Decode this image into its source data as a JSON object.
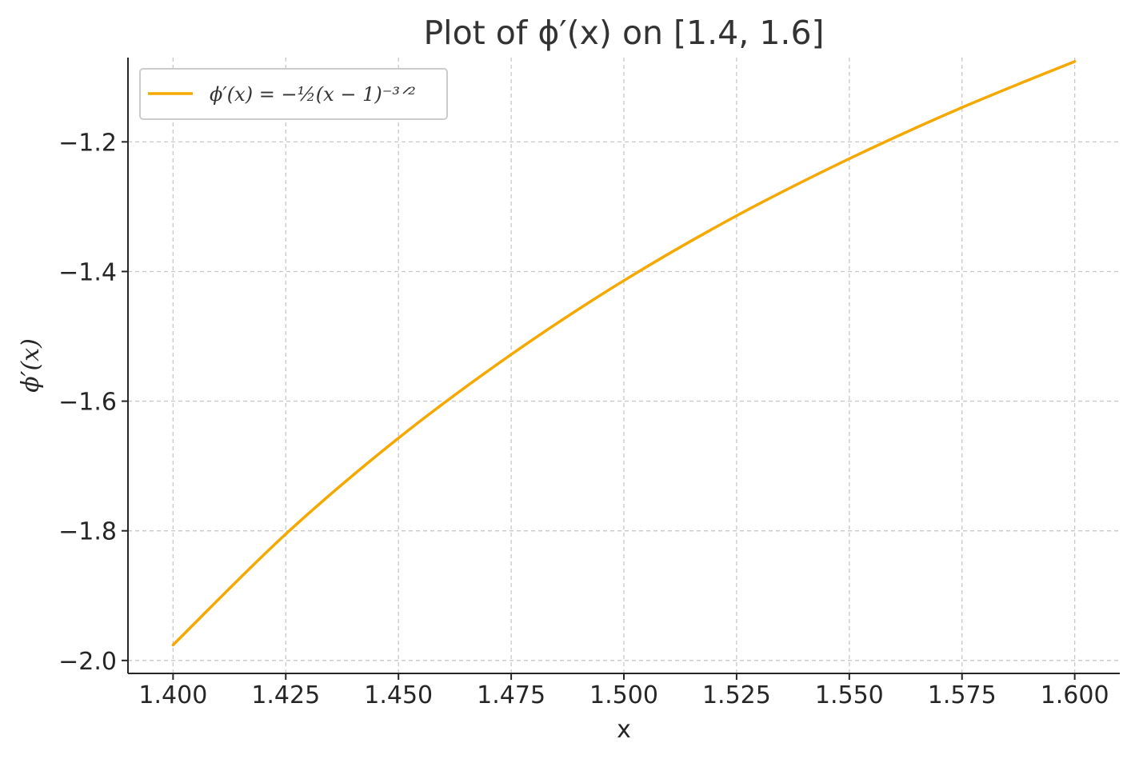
{
  "chart_data": {
    "type": "line",
    "title": "Plot of ϕ′(x) on [1.4, 1.6]",
    "xlabel": "x",
    "ylabel": "ϕ′(x)",
    "xlim": [
      1.39,
      1.61
    ],
    "ylim": [
      -2.02,
      -1.07
    ],
    "x_ticks": [
      1.4,
      1.425,
      1.45,
      1.475,
      1.5,
      1.525,
      1.55,
      1.575,
      1.6
    ],
    "x_tick_labels": [
      "1.400",
      "1.425",
      "1.450",
      "1.475",
      "1.500",
      "1.525",
      "1.550",
      "1.575",
      "1.600"
    ],
    "y_ticks": [
      -2.0,
      -1.8,
      -1.6,
      -1.4,
      -1.2
    ],
    "y_tick_labels": [
      "−2.0",
      "−1.8",
      "−1.6",
      "−1.4",
      "−1.2"
    ],
    "grid": true,
    "legend_position": "top-left",
    "series": [
      {
        "name": "ϕ′(x) = −½(x − 1)⁻³ᐟ²",
        "color": "#f5a800",
        "x": [
          1.4,
          1.425,
          1.45,
          1.475,
          1.5,
          1.525,
          1.55,
          1.575,
          1.6
        ],
        "y": [
          -1.976,
          -1.805,
          -1.657,
          -1.528,
          -1.414,
          -1.314,
          -1.226,
          -1.147,
          -1.076
        ]
      }
    ]
  }
}
